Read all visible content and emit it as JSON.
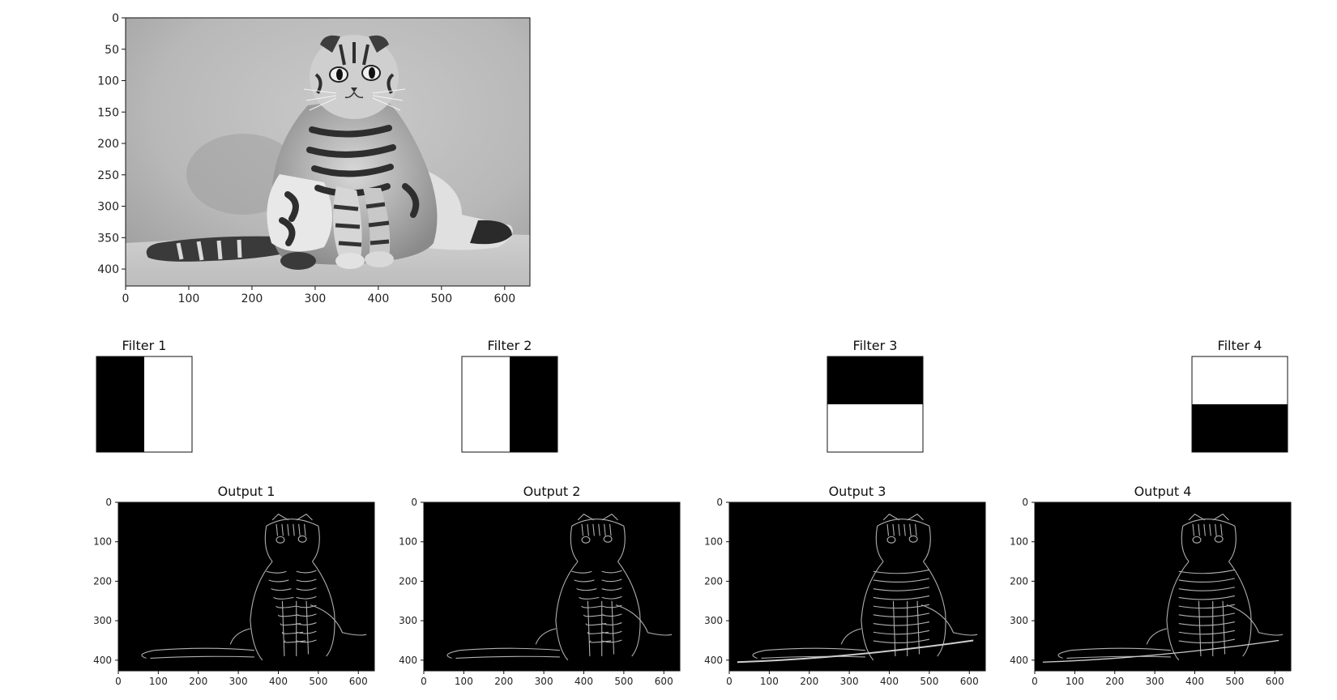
{
  "main_image": {
    "xticks": [
      "0",
      "100",
      "200",
      "300",
      "400",
      "500",
      "600"
    ],
    "yticks": [
      "0",
      "50",
      "100",
      "150",
      "200",
      "250",
      "300",
      "350",
      "400"
    ],
    "colormap": "gray",
    "subject": "grayscale photo of a tabby Scottish Fold cat sitting upright"
  },
  "filters": [
    {
      "title": "Filter 1",
      "pattern": "left-black-right-white"
    },
    {
      "title": "Filter 2",
      "pattern": "left-white-right-black"
    },
    {
      "title": "Filter 3",
      "pattern": "top-black-bottom-white"
    },
    {
      "title": "Filter 4",
      "pattern": "top-white-bottom-black"
    }
  ],
  "outputs": [
    {
      "title": "Output 1"
    },
    {
      "title": "Output 2"
    },
    {
      "title": "Output 3"
    },
    {
      "title": "Output 4"
    }
  ],
  "output_axes": {
    "xticks": [
      "0",
      "100",
      "200",
      "300",
      "400",
      "500",
      "600"
    ],
    "yticks": [
      "0",
      "100",
      "200",
      "300",
      "400"
    ],
    "colormap": "gray",
    "background": "#000000"
  },
  "colors": {
    "black": "#000000",
    "white": "#ffffff",
    "tick_text": "#222222",
    "edge": "#d8d8d8"
  }
}
